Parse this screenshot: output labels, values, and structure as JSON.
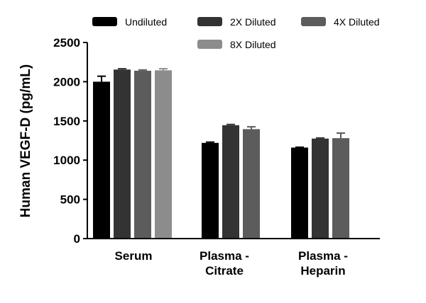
{
  "chart_data": {
    "type": "bar",
    "title": "",
    "xlabel": "",
    "ylabel": "Human VEGF-D (pg/mL)",
    "ylim": [
      0,
      2500
    ],
    "yticks": [
      "0",
      "500",
      "1000",
      "1500",
      "2000",
      "2500"
    ],
    "grid": false,
    "legend_position": "top",
    "categories": [
      [
        "Serum"
      ],
      [
        "Plasma -",
        "Citrate"
      ],
      [
        "Plasma -",
        "Heparin"
      ]
    ],
    "series": [
      {
        "name": "Undiluted",
        "color": "#000000",
        "values": [
          2000,
          1220,
          1160
        ],
        "errors": [
          70,
          10,
          5
        ]
      },
      {
        "name": "2X Diluted",
        "color": "#333333",
        "values": [
          2155,
          1445,
          1275
        ],
        "errors": [
          10,
          10,
          8
        ]
      },
      {
        "name": "4X Diluted",
        "color": "#5c5c5c",
        "values": [
          2140,
          1395,
          1280
        ],
        "errors": [
          10,
          30,
          65
        ]
      },
      {
        "name": "8X Diluted",
        "color": "#8c8c8c",
        "values": [
          2145,
          null,
          null
        ],
        "errors": [
          20,
          null,
          null
        ]
      }
    ]
  }
}
